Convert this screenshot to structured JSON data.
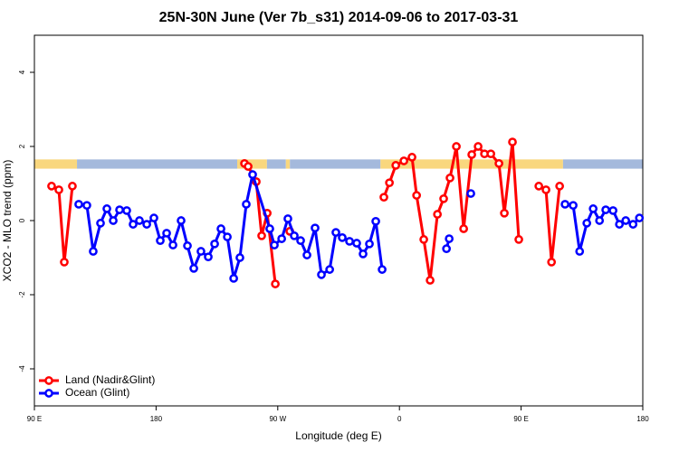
{
  "chart_data": {
    "type": "line",
    "title": "25N-30N June (Ver 7b_s31)   2014-09-06 to 2017-03-31",
    "x_label": "Longitude (deg E)",
    "y_label": "XCO2 - MLO trend (ppm)",
    "xlim": [
      90,
      540
    ],
    "xticks": [
      {
        "value": 90,
        "label": "90 E"
      },
      {
        "value": 180,
        "label": "180"
      },
      {
        "value": 270,
        "label": "90 W"
      },
      {
        "value": 360,
        "label": "0"
      },
      {
        "value": 450,
        "label": "90 E"
      },
      {
        "value": 540,
        "label": "180"
      }
    ],
    "ylim": [
      -5,
      5
    ],
    "yticks": [
      -4,
      -2,
      0,
      2,
      4
    ],
    "legend": "bottom-left",
    "surface_band": {
      "ylim": [
        1.4,
        1.65
      ],
      "segments": [
        {
          "from": 90,
          "to": 121.5,
          "color": "#f9d77e"
        },
        {
          "from": 121.5,
          "to": 240,
          "color": "#a4b9dc"
        },
        {
          "from": 240,
          "to": 262,
          "color": "#f9d77e"
        },
        {
          "from": 262,
          "to": 276,
          "color": "#a4b9dc"
        },
        {
          "from": 276,
          "to": 279,
          "color": "#f9d77e"
        },
        {
          "from": 279,
          "to": 346,
          "color": "#a4b9dc"
        },
        {
          "from": 346,
          "to": 481,
          "color": "#f9d77e"
        },
        {
          "from": 481,
          "to": 540,
          "color": "#a4b9dc"
        }
      ]
    },
    "series": [
      {
        "name": "Land (Nadir&Glint)",
        "color": "#ff0000",
        "x": [
          102.7,
          108.1,
          112.1,
          118.1,
          null,
          245.4,
          248.1,
          254.1,
          258.1,
          262.2,
          268.2,
          null,
          278.9,
          null,
          348.5,
          352.6,
          357.3,
          363.3,
          369.3,
          372.7,
          378.0,
          382.7,
          388.1,
          392.7,
          397.4,
          402.1,
          407.5,
          413.5,
          418.2,
          422.9,
          427.6,
          433.6,
          437.6,
          443.6,
          448.3,
          null,
          463.1,
          468.4,
          472.5,
          478.5
        ],
        "values": [
          0.93,
          0.83,
          -1.12,
          0.93,
          null,
          1.54,
          1.46,
          1.05,
          -0.41,
          0.2,
          -1.71,
          null,
          -0.29,
          null,
          0.63,
          1.02,
          1.49,
          1.61,
          1.71,
          0.68,
          -0.51,
          -1.61,
          0.17,
          0.59,
          1.15,
          2.0,
          -0.22,
          1.78,
          2.0,
          1.8,
          1.8,
          1.54,
          0.2,
          2.12,
          -0.51,
          null,
          0.93,
          0.83,
          -1.12,
          0.93
        ]
      },
      {
        "name": "Ocean (Glint)",
        "color": "#0000ff",
        "x": [
          122.8,
          128.8,
          133.5,
          138.9,
          143.6,
          148.3,
          153.0,
          158.3,
          163.0,
          167.7,
          173.1,
          178.4,
          183.1,
          187.8,
          192.5,
          198.5,
          203.2,
          207.9,
          213.2,
          218.6,
          223.3,
          228.0,
          232.7,
          237.4,
          242.0,
          246.7,
          251.4,
          264.1,
          267.5,
          272.9,
          277.5,
          282.2,
          286.9,
          291.6,
          297.6,
          302.3,
          308.4,
          313.0,
          317.7,
          323.1,
          328.4,
          333.1,
          337.8,
          342.5,
          347.2,
          null,
          394.8,
          396.8,
          null,
          412.8,
          null,
          482.5,
          488.5,
          493.3,
          498.6,
          503.3,
          508.0,
          512.6,
          518.0,
          522.7,
          527.4,
          532.8,
          537.5
        ],
        "values": [
          0.44,
          0.41,
          -0.83,
          -0.07,
          0.32,
          0.0,
          0.29,
          0.27,
          -0.1,
          0.0,
          -0.1,
          0.07,
          -0.54,
          -0.34,
          -0.66,
          0.0,
          -0.68,
          -1.29,
          -0.83,
          -0.98,
          -0.63,
          -0.22,
          -0.44,
          -1.56,
          -1.0,
          0.44,
          1.24,
          -0.22,
          -0.66,
          -0.49,
          0.05,
          -0.41,
          -0.54,
          -0.93,
          -0.2,
          -1.46,
          -1.32,
          -0.32,
          -0.46,
          -0.56,
          -0.61,
          -0.9,
          -0.63,
          -0.02,
          -1.32,
          null,
          -0.76,
          -0.49,
          null,
          0.73,
          null,
          0.44,
          0.41,
          -0.83,
          -0.07,
          0.32,
          0.0,
          0.29,
          0.27,
          -0.1,
          0.0,
          -0.1,
          0.07
        ]
      }
    ]
  }
}
